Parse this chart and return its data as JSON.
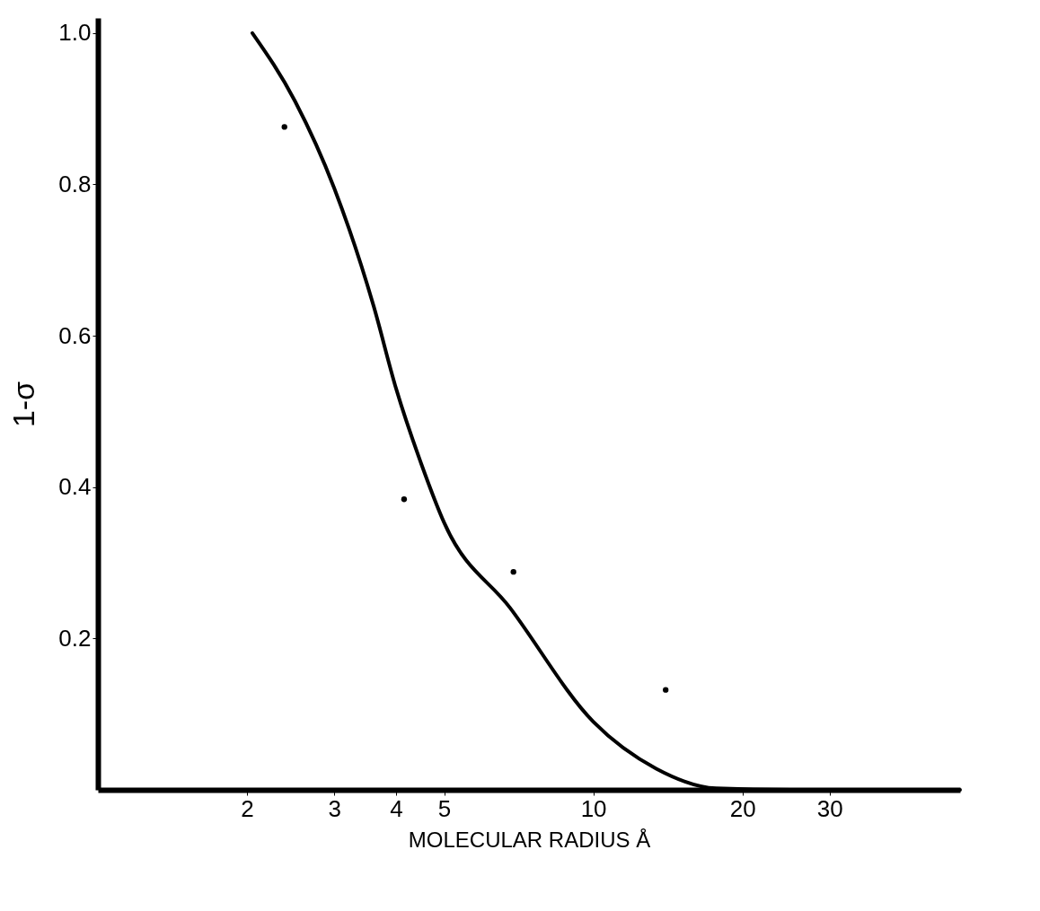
{
  "chart_data": {
    "type": "line",
    "xlabel": "MOLECULAR RADIUS Å",
    "ylabel": "1-σ",
    "log": "x",
    "xlim": [
      1,
      55
    ],
    "xticks": [
      2,
      3,
      4,
      5,
      10,
      20,
      30
    ],
    "ylim": [
      0,
      1.02
    ],
    "yticks": [
      0.2,
      0.4,
      0.6,
      0.8,
      {
        "value": 1,
        "label": "1.0"
      }
    ],
    "grid": false,
    "series": [
      {
        "color": "#000000",
        "marker": "none",
        "line_style": "solid",
        "x": [
          2.05,
          2.5,
          3,
          3.6,
          4,
          4.5,
          5,
          6.8,
          10,
          13.4,
          17.7,
          25,
          55
        ],
        "values": [
          1.0,
          0.91,
          0.795,
          0.64,
          0.53,
          0.43,
          0.353,
          0.24,
          0.09,
          0.028,
          0.002,
          0,
          0
        ]
      },
      {
        "type": "scatter",
        "color": "#000000",
        "marker": "circle",
        "x": [
          2.38,
          4.15,
          6.9,
          14.0
        ],
        "values": [
          0.876,
          0.384,
          0.288,
          0.132
        ]
      }
    ]
  }
}
